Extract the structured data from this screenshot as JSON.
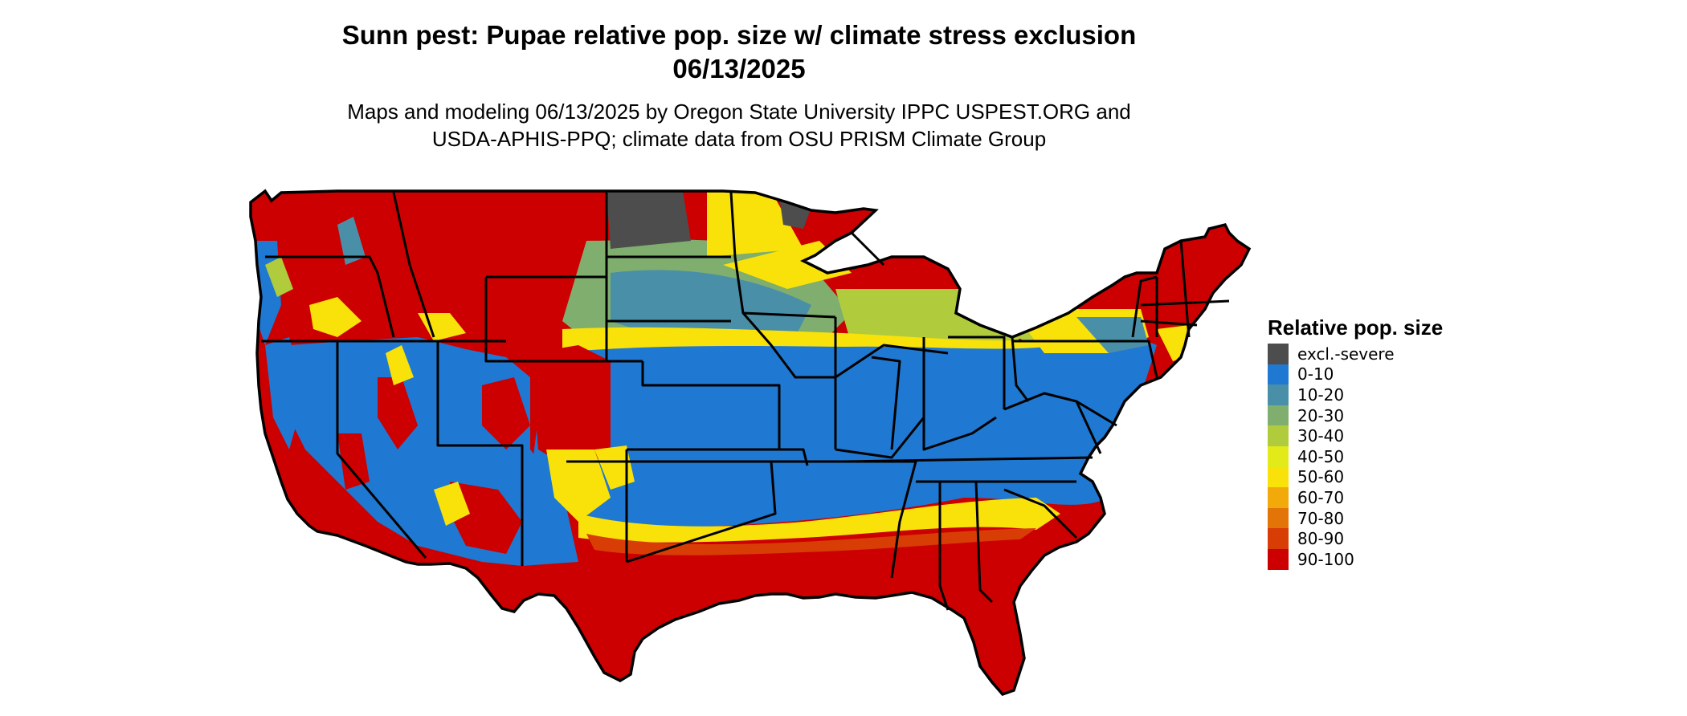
{
  "title": {
    "line1": "Sunn pest: Pupae relative pop. size w/ climate stress exclusion",
    "line2": "06/13/2025"
  },
  "subtitle": {
    "line1": "Maps and modeling 06/13/2025 by Oregon State University IPPC USPEST.ORG and",
    "line2": "USDA-APHIS-PPQ; climate data from OSU PRISM Climate Group"
  },
  "legend": {
    "title": "Relative pop. size",
    "items": [
      {
        "label": "excl.-severe",
        "color": "#4d4d4d"
      },
      {
        "label": "0-10",
        "color": "#1f78d1"
      },
      {
        "label": "10-20",
        "color": "#4a8fa8"
      },
      {
        "label": "20-30",
        "color": "#7fae6e"
      },
      {
        "label": "30-40",
        "color": "#b0cc3c"
      },
      {
        "label": "40-50",
        "color": "#e2ea1a"
      },
      {
        "label": "50-60",
        "color": "#f9e20a"
      },
      {
        "label": "60-70",
        "color": "#f2a90a"
      },
      {
        "label": "70-80",
        "color": "#e37408"
      },
      {
        "label": "80-90",
        "color": "#d83d06"
      },
      {
        "label": "90-100",
        "color": "#cc0000"
      }
    ]
  },
  "map": {
    "region": "contiguous-us",
    "colors": {
      "excl": "#4d4d4d",
      "low": "#1f78d1",
      "mid": "#7fae6e",
      "yellow": "#f9e20a",
      "orange": "#d83d06",
      "high": "#cc0000",
      "border": "#000000"
    }
  }
}
